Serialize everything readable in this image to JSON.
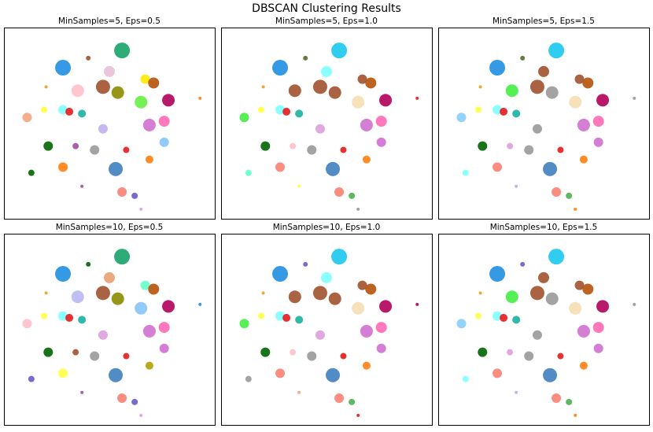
{
  "title": "DBSCAN Clustering Results",
  "chart_data": [
    {
      "type": "scatter",
      "title": "MinSamples=5, Eps=0.5",
      "xlim": [
        0,
        100
      ],
      "ylim": [
        0,
        100
      ],
      "x": [
        56,
        50,
        28,
        40,
        67,
        71,
        47,
        35,
        54,
        78,
        65,
        28,
        11,
        19,
        31,
        37,
        76,
        47,
        69,
        21,
        34,
        43,
        76,
        58,
        28,
        53,
        69,
        13,
        56,
        62,
        37,
        65,
        20,
        93
      ],
      "y": [
        88,
        77,
        79,
        84,
        73,
        71,
        69,
        67,
        66,
        62,
        61,
        57,
        53,
        57,
        56,
        55,
        51,
        47,
        49,
        38,
        38,
        36,
        40,
        36,
        27,
        26,
        31,
        24,
        14,
        12,
        17,
        5,
        69,
        63
      ],
      "sizes": [
        10,
        7,
        10,
        3,
        6,
        7,
        9,
        8,
        8,
        8,
        8,
        6,
        6,
        4,
        5,
        5,
        7,
        6,
        8,
        6,
        4,
        6,
        6,
        4,
        6,
        9,
        5,
        4,
        6,
        4,
        2,
        2,
        2,
        2
      ],
      "colors": [
        "#16a36b",
        "#e8c0d8",
        "#1f8fe0",
        "#a0522d",
        "#ffea00",
        "#b5520a",
        "#a0522d",
        "#ffc0cb",
        "#8b8b00",
        "#b0005a",
        "#66ee44",
        "#7fffff",
        "#f4a582",
        "#ffff44",
        "#e41a1c",
        "#1ab0a0",
        "#ff69b4",
        "#c0b0f0",
        "#d070d0",
        "#006400",
        "#9b4fa0",
        "#999999",
        "#86c5fa",
        "#e41a1c",
        "#ff7f0e",
        "#3f7fbf",
        "#ff7f0e",
        "#006400",
        "#fa8072",
        "#6a5acd",
        "#9b4fa0",
        "#dda0dd",
        "#e6a020",
        "#ff7f0e"
      ]
    },
    {
      "type": "scatter",
      "title": "MinSamples=5, Eps=1.0",
      "xlim": [
        0,
        100
      ],
      "ylim": [
        0,
        100
      ],
      "x": [
        56,
        50,
        28,
        40,
        67,
        71,
        47,
        35,
        54,
        78,
        65,
        28,
        11,
        19,
        31,
        37,
        76,
        47,
        69,
        21,
        34,
        43,
        76,
        58,
        28,
        53,
        69,
        13,
        56,
        62,
        37,
        65,
        20,
        93
      ],
      "y": [
        88,
        77,
        79,
        84,
        73,
        71,
        69,
        67,
        66,
        62,
        61,
        57,
        53,
        57,
        56,
        55,
        51,
        47,
        49,
        38,
        38,
        36,
        40,
        36,
        27,
        26,
        31,
        24,
        14,
        12,
        17,
        5,
        69,
        63
      ],
      "sizes": [
        10,
        7,
        10,
        3,
        6,
        7,
        9,
        8,
        8,
        8,
        8,
        6,
        6,
        4,
        5,
        5,
        7,
        6,
        8,
        6,
        4,
        6,
        6,
        4,
        6,
        9,
        5,
        4,
        6,
        4,
        2,
        2,
        2,
        2
      ],
      "colors": [
        "#1ac8ef",
        "#7fffff",
        "#1f8fe0",
        "#556b2f",
        "#a0522d",
        "#b5520a",
        "#a0522d",
        "#a0522d",
        "#a0522d",
        "#b0005a",
        "#f5deb3",
        "#7fffff",
        "#44ee44",
        "#ffff44",
        "#e41a1c",
        "#1ab0a0",
        "#ff69b4",
        "#dda0dd",
        "#d070d0",
        "#006400",
        "#ffc0cb",
        "#999999",
        "#d070d0",
        "#e41a1c",
        "#fa8072",
        "#3f7fbf",
        "#ff7f0e",
        "#66ffcc",
        "#fa8072",
        "#4caf50",
        "#ffff44",
        "#999999",
        "#e6a020",
        "#e41a1c"
      ]
    },
    {
      "type": "scatter",
      "title": "MinSamples=5, Eps=1.5",
      "xlim": [
        0,
        100
      ],
      "ylim": [
        0,
        100
      ],
      "x": [
        56,
        50,
        28,
        40,
        67,
        71,
        47,
        35,
        54,
        78,
        65,
        28,
        11,
        19,
        31,
        37,
        76,
        47,
        69,
        21,
        34,
        43,
        76,
        58,
        28,
        53,
        69,
        13,
        56,
        62,
        37,
        65,
        20,
        93
      ],
      "y": [
        88,
        77,
        79,
        84,
        73,
        71,
        69,
        67,
        66,
        62,
        61,
        57,
        53,
        57,
        56,
        55,
        51,
        47,
        49,
        38,
        38,
        36,
        40,
        36,
        27,
        26,
        31,
        24,
        14,
        12,
        17,
        5,
        69,
        63
      ],
      "sizes": [
        10,
        7,
        10,
        3,
        6,
        7,
        9,
        8,
        8,
        8,
        8,
        6,
        6,
        4,
        5,
        5,
        7,
        6,
        8,
        6,
        4,
        6,
        6,
        4,
        6,
        9,
        5,
        4,
        6,
        4,
        2,
        2,
        2,
        2
      ],
      "colors": [
        "#1ac8ef",
        "#a0522d",
        "#1f8fe0",
        "#556b2f",
        "#a0522d",
        "#b5520a",
        "#a0522d",
        "#44ee44",
        "#999999",
        "#b0005a",
        "#f5deb3",
        "#7fffff",
        "#87cefa",
        "#ffff44",
        "#e41a1c",
        "#1ab0a0",
        "#ff69b4",
        "#999999",
        "#d070d0",
        "#006400",
        "#dda0dd",
        "#999999",
        "#d070d0",
        "#e41a1c",
        "#fa8072",
        "#3f7fbf",
        "#ff7f0e",
        "#7fffff",
        "#fa8072",
        "#4caf50",
        "#b0b0e0",
        "#ff7f0e",
        "#e6a020",
        "#999999"
      ]
    },
    {
      "type": "scatter",
      "title": "MinSamples=10, Eps=0.5",
      "xlim": [
        0,
        100
      ],
      "ylim": [
        0,
        100
      ],
      "x": [
        56,
        50,
        28,
        40,
        67,
        71,
        47,
        35,
        54,
        78,
        65,
        28,
        11,
        19,
        31,
        37,
        76,
        47,
        69,
        21,
        34,
        43,
        76,
        58,
        28,
        53,
        69,
        13,
        56,
        62,
        37,
        65,
        20,
        93
      ],
      "y": [
        88,
        77,
        79,
        84,
        73,
        71,
        69,
        67,
        66,
        62,
        61,
        57,
        53,
        57,
        56,
        55,
        51,
        47,
        49,
        38,
        38,
        36,
        40,
        36,
        27,
        26,
        31,
        24,
        14,
        12,
        17,
        5,
        69,
        63
      ],
      "sizes": [
        10,
        7,
        10,
        3,
        6,
        7,
        9,
        8,
        8,
        8,
        8,
        6,
        6,
        4,
        5,
        5,
        7,
        6,
        8,
        6,
        4,
        6,
        6,
        4,
        6,
        9,
        5,
        4,
        6,
        4,
        2,
        2,
        2,
        2
      ],
      "colors": [
        "#16a36b",
        "#e8a070",
        "#1f8fe0",
        "#006400",
        "#66ffcc",
        "#b5520a",
        "#a0522d",
        "#b8b8f0",
        "#8b8b00",
        "#b0005a",
        "#86c5fa",
        "#7fffff",
        "#ffc0cb",
        "#ffff44",
        "#e41a1c",
        "#1ab0a0",
        "#ff69b4",
        "#dda0dd",
        "#d070d0",
        "#006400",
        "#a0522d",
        "#999999",
        "#d070d0",
        "#e41a1c",
        "#ffff44",
        "#3f7fbf",
        "#b0a000",
        "#6a5acd",
        "#fa8072",
        "#6a5acd",
        "#9b4fa0",
        "#dda0dd",
        "#e6a020",
        "#1f8fe0"
      ]
    },
    {
      "type": "scatter",
      "title": "MinSamples=10, Eps=1.0",
      "xlim": [
        0,
        100
      ],
      "ylim": [
        0,
        100
      ],
      "x": [
        56,
        50,
        28,
        40,
        67,
        71,
        47,
        35,
        54,
        78,
        65,
        28,
        11,
        19,
        31,
        37,
        76,
        47,
        69,
        21,
        34,
        43,
        76,
        58,
        28,
        53,
        69,
        13,
        56,
        62,
        37,
        65,
        20,
        93
      ],
      "y": [
        88,
        77,
        79,
        84,
        73,
        71,
        69,
        67,
        66,
        62,
        61,
        57,
        53,
        57,
        56,
        55,
        51,
        47,
        49,
        38,
        38,
        36,
        40,
        36,
        27,
        26,
        31,
        24,
        14,
        12,
        17,
        5,
        69,
        63
      ],
      "sizes": [
        10,
        7,
        10,
        3,
        6,
        7,
        9,
        8,
        8,
        8,
        8,
        6,
        6,
        4,
        5,
        5,
        7,
        6,
        8,
        6,
        4,
        6,
        6,
        4,
        6,
        9,
        5,
        4,
        6,
        4,
        2,
        2,
        2,
        2
      ],
      "colors": [
        "#1ac8ef",
        "#7fffff",
        "#1f8fe0",
        "#6a5acd",
        "#a0522d",
        "#b5520a",
        "#a0522d",
        "#a0522d",
        "#a0522d",
        "#b0005a",
        "#f5deb3",
        "#7fffff",
        "#44ee44",
        "#ffff44",
        "#e41a1c",
        "#1ab0a0",
        "#ff69b4",
        "#dda0dd",
        "#d070d0",
        "#006400",
        "#ffc0cb",
        "#999999",
        "#d070d0",
        "#e41a1c",
        "#fa8072",
        "#3f7fbf",
        "#ff7f0e",
        "#999999",
        "#fa8072",
        "#4caf50",
        "#f4a582",
        "#e41a1c",
        "#e6a020",
        "#b0005a"
      ]
    },
    {
      "type": "scatter",
      "title": "MinSamples=10, Eps=1.5",
      "xlim": [
        0,
        100
      ],
      "ylim": [
        0,
        100
      ],
      "x": [
        56,
        50,
        28,
        40,
        67,
        71,
        47,
        35,
        54,
        78,
        65,
        28,
        11,
        19,
        31,
        37,
        76,
        47,
        69,
        21,
        34,
        43,
        76,
        58,
        28,
        53,
        69,
        13,
        56,
        62,
        37,
        65,
        20,
        93
      ],
      "y": [
        88,
        77,
        79,
        84,
        73,
        71,
        69,
        67,
        66,
        62,
        61,
        57,
        53,
        57,
        56,
        55,
        51,
        47,
        49,
        38,
        38,
        36,
        40,
        36,
        27,
        26,
        31,
        24,
        14,
        12,
        17,
        5,
        69,
        63
      ],
      "sizes": [
        10,
        7,
        10,
        3,
        6,
        7,
        9,
        8,
        8,
        8,
        8,
        6,
        6,
        4,
        5,
        5,
        7,
        6,
        8,
        6,
        4,
        6,
        6,
        4,
        6,
        9,
        5,
        4,
        6,
        4,
        2,
        2,
        2,
        2
      ],
      "colors": [
        "#1ac8ef",
        "#a0522d",
        "#1f8fe0",
        "#6a5acd",
        "#a0522d",
        "#b5520a",
        "#a0522d",
        "#44ee44",
        "#999999",
        "#b0005a",
        "#f5deb3",
        "#7fffff",
        "#87cefa",
        "#ffff44",
        "#e41a1c",
        "#1ab0a0",
        "#ff69b4",
        "#999999",
        "#d070d0",
        "#006400",
        "#dda0dd",
        "#999999",
        "#d070d0",
        "#e41a1c",
        "#fa8072",
        "#3f7fbf",
        "#ff7f0e",
        "#7fffff",
        "#fa8072",
        "#4caf50",
        "#b0b0e0",
        "#ff7f0e",
        "#e6a020",
        "#999999"
      ]
    }
  ]
}
